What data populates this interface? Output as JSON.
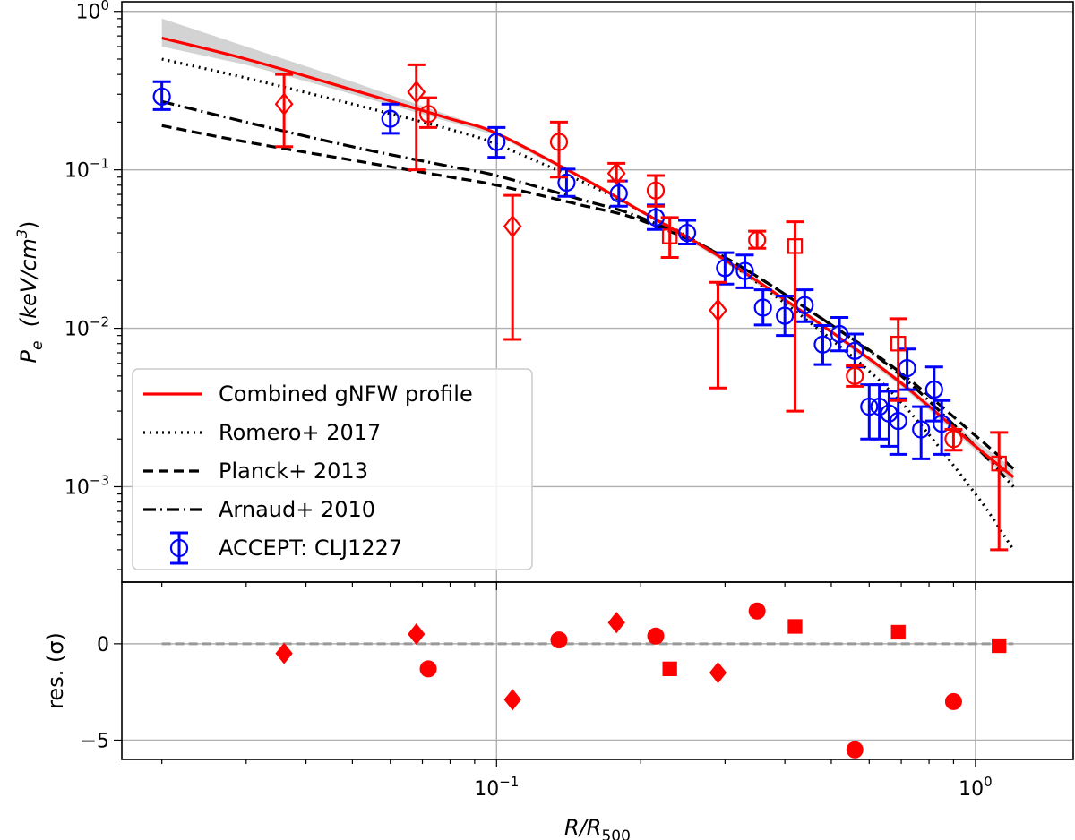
{
  "chart_data": [
    {
      "panel": "main",
      "type": "scatter",
      "xscale": "log",
      "yscale": "log",
      "xlim": [
        0.0165,
        1.6
      ],
      "ylim": [
        0.00025,
        1.15
      ],
      "ylabel": "P_e (keV/cm^3)",
      "ylabel_parts": {
        "sym": "P",
        "sub": "e",
        "pre": "(keV/cm",
        "sup": "3",
        "post": ")"
      },
      "yticks": [
        {
          "value": 1,
          "base": "10",
          "exp": "0"
        },
        {
          "value": 0.1,
          "base": "10",
          "exp": "−1"
        },
        {
          "value": 0.01,
          "base": "10",
          "exp": "−2"
        },
        {
          "value": 0.001,
          "base": "10",
          "exp": "−3"
        }
      ],
      "legend_position": "lower-left",
      "legend": [
        {
          "label": "Combined gNFW profile",
          "style": "solid",
          "color": "#ff0000"
        },
        {
          "label": "Romero+ 2017",
          "style": "dotted",
          "color": "#000000"
        },
        {
          "label": "Planck+ 2013",
          "style": "dashed",
          "color": "#000000"
        },
        {
          "label": "Arnaud+ 2010",
          "style": "dashdot",
          "color": "#000000"
        },
        {
          "label": "ACCEPT: CLJ1227",
          "style": "errorbar-circle",
          "color": "#0000ff"
        }
      ],
      "model_x": [
        0.02,
        0.03,
        0.05,
        0.08,
        0.1,
        0.15,
        0.2,
        0.3,
        0.5,
        0.7,
        1.0,
        1.2
      ],
      "series": [
        {
          "name": "Combined gNFW profile",
          "style": "solid",
          "color": "#ff0000",
          "values": [
            0.68,
            0.5,
            0.32,
            0.21,
            0.17,
            0.09,
            0.055,
            0.027,
            0.0095,
            0.0045,
            0.0018,
            0.00115
          ]
        },
        {
          "name": "gNFW 1-sigma band upper",
          "style": "band",
          "color": "#d3d3d3",
          "values": [
            0.9,
            0.6,
            0.36,
            0.22,
            0.175,
            0.092,
            0.056,
            0.027,
            0.0097,
            0.0047,
            0.00195,
            0.0013
          ]
        },
        {
          "name": "gNFW 1-sigma band lower",
          "style": "band",
          "color": "#d3d3d3",
          "values": [
            0.6,
            0.46,
            0.3,
            0.2,
            0.165,
            0.088,
            0.054,
            0.026,
            0.0092,
            0.0043,
            0.0017,
            0.00105
          ]
        },
        {
          "name": "Romero+ 2017",
          "style": "dotted",
          "color": "#000000",
          "values": [
            0.5,
            0.38,
            0.26,
            0.18,
            0.145,
            0.085,
            0.055,
            0.027,
            0.0085,
            0.0034,
            0.0009,
            0.0004
          ]
        },
        {
          "name": "Planck+ 2013",
          "style": "dashed",
          "color": "#000000",
          "values": [
            0.19,
            0.15,
            0.115,
            0.09,
            0.08,
            0.06,
            0.048,
            0.028,
            0.0105,
            0.0052,
            0.0021,
            0.0013
          ]
        },
        {
          "name": "Arnaud+ 2010",
          "style": "dashdot",
          "color": "#000000",
          "values": [
            0.27,
            0.2,
            0.14,
            0.105,
            0.092,
            0.065,
            0.05,
            0.028,
            0.0105,
            0.005,
            0.0018,
            0.001
          ]
        }
      ],
      "points": [
        {
          "set": "ACCEPT: CLJ1227",
          "color": "#0000ff",
          "marker": "circle",
          "x": [
            0.02,
            0.06,
            0.1,
            0.14,
            0.18,
            0.215,
            0.25,
            0.3,
            0.33,
            0.36,
            0.4,
            0.44,
            0.48,
            0.52,
            0.56,
            0.6,
            0.63,
            0.66,
            0.69,
            0.72,
            0.77,
            0.82,
            0.85
          ],
          "y": [
            0.29,
            0.21,
            0.15,
            0.083,
            0.071,
            0.05,
            0.04,
            0.024,
            0.023,
            0.0135,
            0.012,
            0.014,
            0.0079,
            0.0092,
            0.0072,
            0.0032,
            0.0032,
            0.0029,
            0.0026,
            0.0056,
            0.0023,
            0.0041,
            0.0025
          ],
          "err_lo": [
            0.05,
            0.04,
            0.03,
            0.015,
            0.012,
            0.008,
            0.006,
            0.005,
            0.005,
            0.003,
            0.003,
            0.003,
            0.002,
            0.002,
            0.0015,
            0.0012,
            0.0012,
            0.0011,
            0.001,
            0.0015,
            0.0008,
            0.0015,
            0.0009
          ],
          "err_hi": [
            0.07,
            0.05,
            0.035,
            0.018,
            0.014,
            0.01,
            0.008,
            0.006,
            0.006,
            0.004,
            0.004,
            0.0035,
            0.0025,
            0.0025,
            0.002,
            0.0012,
            0.0012,
            0.0011,
            0.001,
            0.0018,
            0.0009,
            0.0016,
            0.001
          ]
        },
        {
          "set": "NIKA circles",
          "color": "#ff0000",
          "marker": "circle",
          "x": [
            0.072,
            0.135,
            0.215,
            0.35,
            0.56,
            0.9
          ],
          "y": [
            0.225,
            0.15,
            0.074,
            0.036,
            0.005,
            0.002
          ],
          "err_lo": [
            0.04,
            0.06,
            0.015,
            0.004,
            0.0007,
            0.0003
          ],
          "err_hi": [
            0.06,
            0.05,
            0.018,
            0.005,
            0.0008,
            0.0003
          ]
        },
        {
          "set": "diamonds",
          "color": "#ff0000",
          "marker": "diamond",
          "x": [
            0.036,
            0.068,
            0.108,
            0.178,
            0.29
          ],
          "y": [
            0.26,
            0.31,
            0.044,
            0.095,
            0.013
          ],
          "err_lo": [
            0.12,
            0.21,
            0.0355,
            0.01,
            0.0088
          ],
          "err_hi": [
            0.14,
            0.15,
            0.025,
            0.015,
            0.0065
          ]
        },
        {
          "set": "squares",
          "color": "#ff0000",
          "marker": "square",
          "x": [
            0.23,
            0.42,
            0.69,
            1.12
          ],
          "y": [
            0.038,
            0.033,
            0.008,
            0.0014
          ],
          "err_lo": [
            0.01,
            0.03,
            0.0045,
            0.001
          ],
          "err_hi": [
            0.012,
            0.014,
            0.0035,
            0.0008
          ]
        }
      ]
    },
    {
      "panel": "residuals",
      "type": "scatter",
      "xscale": "log",
      "xlim": [
        0.0165,
        1.6
      ],
      "ylim": [
        -6,
        3.2
      ],
      "ylabel": "res.  (σ)",
      "xlabel": "R/R500",
      "xlabel_parts": {
        "sym": "R/R",
        "sub": "500"
      },
      "yticks": [
        "0",
        "−5"
      ],
      "ytick_values": [
        0,
        -5
      ],
      "xticks": [
        {
          "value": 0.1,
          "base": "10",
          "exp": "−1"
        },
        {
          "value": 1,
          "base": "10",
          "exp": "0"
        }
      ],
      "zero_line": {
        "value": 0,
        "style": "dashed",
        "color": "#999999"
      },
      "points": [
        {
          "set": "diamonds",
          "marker": "diamond",
          "color": "#ff0000",
          "x": [
            0.036,
            0.068,
            0.108,
            0.178,
            0.29
          ],
          "y": [
            -0.5,
            0.5,
            -2.9,
            1.1,
            -1.5
          ]
        },
        {
          "set": "circles",
          "marker": "circle",
          "color": "#ff0000",
          "x": [
            0.072,
            0.135,
            0.215,
            0.35,
            0.56,
            0.9
          ],
          "y": [
            -1.3,
            0.2,
            0.4,
            1.7,
            -5.5,
            -3.0
          ]
        },
        {
          "set": "squares",
          "marker": "square",
          "color": "#ff0000",
          "x": [
            0.23,
            0.42,
            0.69,
            1.12
          ],
          "y": [
            -1.3,
            0.9,
            0.6,
            -0.1
          ]
        }
      ]
    }
  ]
}
